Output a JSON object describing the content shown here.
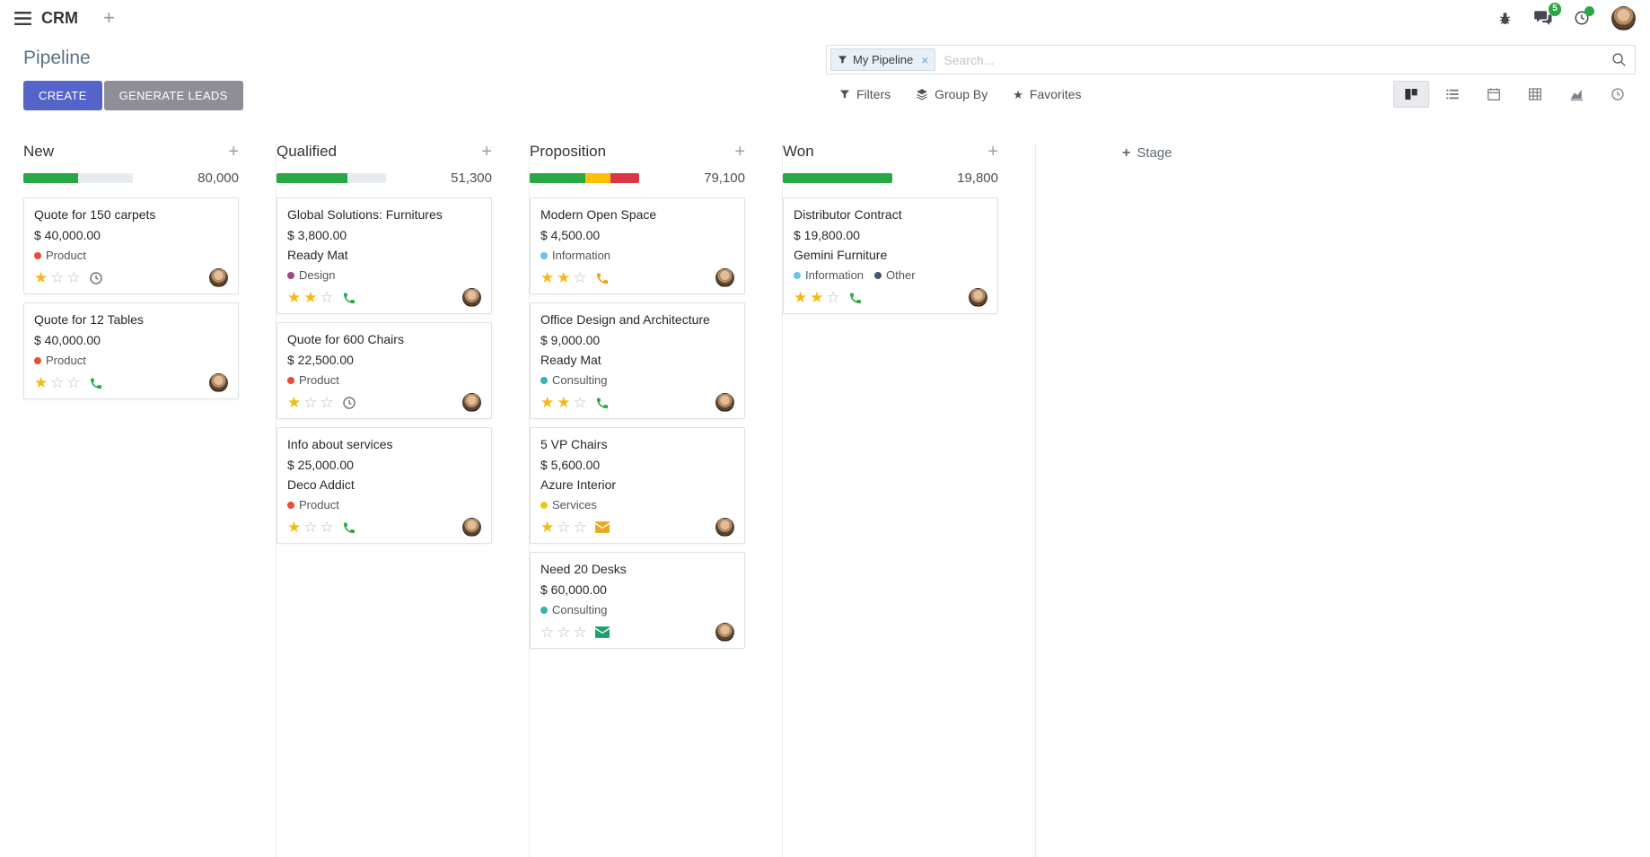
{
  "glyphs": {
    "plus": "+",
    "close": "×",
    "star": "★"
  },
  "colors": {
    "primary_button": "#5464c8",
    "secondary_button": "#8e8e97",
    "badge_green": "#28a745"
  },
  "topbar": {
    "app_name": "CRM",
    "messages_badge": "5"
  },
  "control_panel": {
    "title": "Pipeline",
    "create_label": "CREATE",
    "generate_leads_label": "GENERATE LEADS",
    "search": {
      "facet_label": "My Pipeline",
      "placeholder": "Search..."
    },
    "filters_label": "Filters",
    "group_by_label": "Group By",
    "favorites_label": "Favorites"
  },
  "board": {
    "add_stage_label": "Stage",
    "columns": [
      {
        "name": "New",
        "total": "80,000",
        "segments": [
          {
            "color": "#28a745",
            "pct": 50
          }
        ],
        "cards": [
          {
            "title": "Quote for 150 carpets",
            "amount": "$ 40,000.00",
            "tags": [
              {
                "label": "Product",
                "color": "#e74c3c"
              }
            ],
            "stars": 1,
            "activity": {
              "type": "clock",
              "color": "#6c757d"
            }
          },
          {
            "title": "Quote for 12 Tables",
            "amount": "$ 40,000.00",
            "tags": [
              {
                "label": "Product",
                "color": "#e74c3c"
              }
            ],
            "stars": 1,
            "activity": {
              "type": "phone",
              "color": "#28a745"
            }
          }
        ]
      },
      {
        "name": "Qualified",
        "total": "51,300",
        "segments": [
          {
            "color": "#28a745",
            "pct": 65
          }
        ],
        "cards": [
          {
            "title": "Global Solutions: Furnitures",
            "amount": "$ 3,800.00",
            "partner": "Ready Mat",
            "tags": [
              {
                "label": "Design",
                "color": "#a24689"
              }
            ],
            "stars": 2,
            "activity": {
              "type": "phone",
              "color": "#28a745"
            }
          },
          {
            "title": "Quote for 600 Chairs",
            "amount": "$ 22,500.00",
            "tags": [
              {
                "label": "Product",
                "color": "#e74c3c"
              }
            ],
            "stars": 1,
            "activity": {
              "type": "clock",
              "color": "#6c757d"
            }
          },
          {
            "title": "Info about services",
            "amount": "$ 25,000.00",
            "partner": "Deco Addict",
            "tags": [
              {
                "label": "Product",
                "color": "#e74c3c"
              }
            ],
            "stars": 1,
            "activity": {
              "type": "phone",
              "color": "#28a745"
            }
          }
        ]
      },
      {
        "name": "Proposition",
        "total": "79,100",
        "segments": [
          {
            "color": "#28a745",
            "pct": 51
          },
          {
            "color": "#ffc107",
            "pct": 23
          },
          {
            "color": "#dc3545",
            "pct": 26
          }
        ],
        "cards": [
          {
            "title": "Modern Open Space",
            "amount": "$ 4,500.00",
            "tags": [
              {
                "label": "Information",
                "color": "#6cc1ed"
              }
            ],
            "stars": 2,
            "activity": {
              "type": "phone",
              "color": "#f0a009"
            }
          },
          {
            "title": "Office Design and Architecture",
            "amount": "$ 9,000.00",
            "partner": "Ready Mat",
            "tags": [
              {
                "label": "Consulting",
                "color": "#35b5aa"
              }
            ],
            "stars": 2,
            "activity": {
              "type": "phone",
              "color": "#28a745"
            }
          },
          {
            "title": "5 VP Chairs",
            "amount": "$ 5,600.00",
            "partner": "Azure Interior",
            "tags": [
              {
                "label": "Services",
                "color": "#f0c51c"
              }
            ],
            "stars": 1,
            "activity": {
              "type": "envelope",
              "color": "#e8a91d"
            }
          },
          {
            "title": "Need 20 Desks",
            "amount": "$ 60,000.00",
            "tags": [
              {
                "label": "Consulting",
                "color": "#35b5aa"
              }
            ],
            "stars": 0,
            "activity": {
              "type": "envelope",
              "color": "#1f9e6e"
            }
          }
        ]
      },
      {
        "name": "Won",
        "total": "19,800",
        "segments": [
          {
            "color": "#28a745",
            "pct": 100
          }
        ],
        "cards": [
          {
            "title": "Distributor Contract",
            "amount": "$ 19,800.00",
            "partner": "Gemini Furniture",
            "tags": [
              {
                "label": "Information",
                "color": "#6cc1ed"
              },
              {
                "label": "Other",
                "color": "#475577"
              }
            ],
            "stars": 2,
            "activity": {
              "type": "phone",
              "color": "#28a745"
            }
          }
        ]
      }
    ]
  }
}
